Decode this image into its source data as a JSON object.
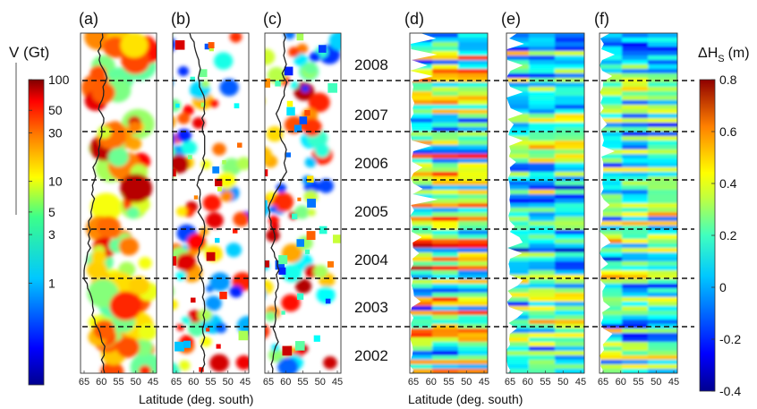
{
  "chart_data": {
    "type": "heatmap",
    "panels_left": {
      "labels": [
        "(a)",
        "(b)",
        "(c)"
      ],
      "colorbar_title": "V (Gt)",
      "colorbar_ticks": [
        "100",
        "50",
        "30",
        "10",
        "5",
        "3",
        "1"
      ],
      "colorbar_values": [
        100,
        50,
        30,
        10,
        5,
        3,
        1
      ],
      "colorbar_scale": "log",
      "colorbar_range": [
        0.1,
        100
      ],
      "x_ticks": [
        "65",
        "60",
        "55",
        "50",
        "45"
      ],
      "xlabel": "Latitude (deg. south)"
    },
    "panels_right": {
      "labels": [
        "(d)",
        "(e)",
        "(f)"
      ],
      "colorbar_title": "ΔH",
      "colorbar_title_sub": "S",
      "colorbar_title_unit": "(m)",
      "colorbar_ticks": [
        "0.8",
        "0.6",
        "0.4",
        "0.2",
        "0",
        "-0.2",
        "-0.4"
      ],
      "colorbar_range": [
        -0.4,
        0.8
      ],
      "x_ticks": [
        "65",
        "60",
        "55",
        "50",
        "45"
      ],
      "xlabel": "Latitude (deg. south)"
    },
    "x_range": [
      65,
      45
    ],
    "years": [
      "2008",
      "2007",
      "2006",
      "2005",
      "2004",
      "2003",
      "2002"
    ],
    "year_boundaries_dashed": true
  }
}
